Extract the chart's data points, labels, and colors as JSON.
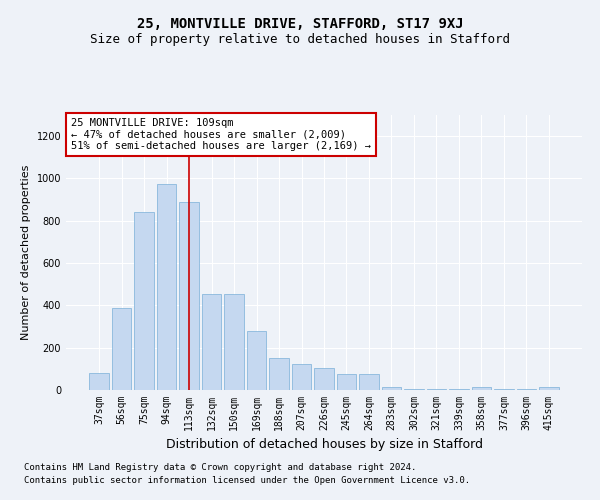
{
  "title": "25, MONTVILLE DRIVE, STAFFORD, ST17 9XJ",
  "subtitle": "Size of property relative to detached houses in Stafford",
  "xlabel": "Distribution of detached houses by size in Stafford",
  "ylabel": "Number of detached properties",
  "categories": [
    "37sqm",
    "56sqm",
    "75sqm",
    "94sqm",
    "113sqm",
    "132sqm",
    "150sqm",
    "169sqm",
    "188sqm",
    "207sqm",
    "226sqm",
    "245sqm",
    "264sqm",
    "283sqm",
    "302sqm",
    "321sqm",
    "339sqm",
    "358sqm",
    "377sqm",
    "396sqm",
    "415sqm"
  ],
  "values": [
    80,
    390,
    840,
    975,
    890,
    455,
    455,
    280,
    150,
    125,
    105,
    75,
    75,
    15,
    5,
    5,
    5,
    15,
    5,
    5,
    15
  ],
  "bar_color": "#c5d8f0",
  "bar_edgecolor": "#7ab0d8",
  "vline_x": 4,
  "vline_color": "#cc0000",
  "annotation_text": "25 MONTVILLE DRIVE: 109sqm\n← 47% of detached houses are smaller (2,009)\n51% of semi-detached houses are larger (2,169) →",
  "annotation_box_color": "#ffffff",
  "annotation_box_edgecolor": "#cc0000",
  "ylim": [
    0,
    1300
  ],
  "yticks": [
    0,
    200,
    400,
    600,
    800,
    1000,
    1200
  ],
  "background_color": "#eef2f8",
  "plot_background": "#eef2f8",
  "grid_color": "#ffffff",
  "footer_line1": "Contains HM Land Registry data © Crown copyright and database right 2024.",
  "footer_line2": "Contains public sector information licensed under the Open Government Licence v3.0.",
  "title_fontsize": 10,
  "subtitle_fontsize": 9,
  "xlabel_fontsize": 9,
  "ylabel_fontsize": 8,
  "tick_fontsize": 7,
  "annotation_fontsize": 7.5,
  "footer_fontsize": 6.5
}
